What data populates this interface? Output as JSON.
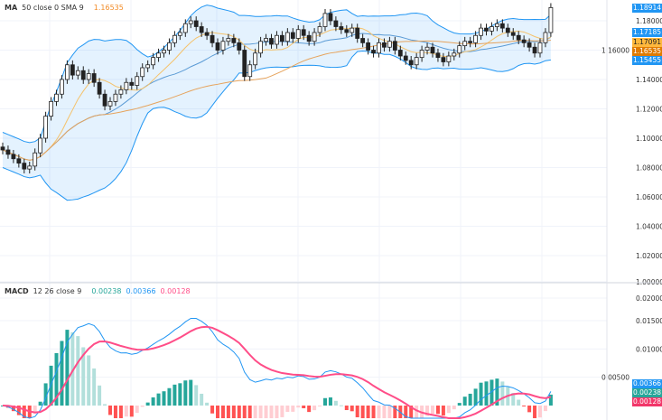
{
  "price_legend": {
    "name": "MA",
    "params": "50 close 0 SMA 9",
    "value": "1.16535",
    "value_color": "#f28c28"
  },
  "macd_legend": {
    "name": "MACD",
    "params": "12 26 close 9",
    "values": [
      {
        "text": "0.00238",
        "color": "#26a69a"
      },
      {
        "text": "0.00366",
        "color": "#2196f3"
      },
      {
        "text": "0.00128",
        "color": "#ff4d88"
      }
    ]
  },
  "price_tags": [
    {
      "text": "1.18914",
      "color": "#2196f3",
      "price": 1.18914
    },
    {
      "text": "1.17185",
      "color": "#2196f3",
      "price": 1.17185
    },
    {
      "text": "1.17091",
      "color": "#ffb83d",
      "price": 1.17091,
      "dark_text": true
    },
    {
      "text": "1.16535",
      "color": "#e07b00",
      "price": 1.16535
    },
    {
      "text": "1.15455",
      "color": "#2196f3",
      "price": 1.15455
    }
  ],
  "macd_tags": [
    {
      "text": "0.00366",
      "color": "#2196f3"
    },
    {
      "text": "0.00238",
      "color": "#26a69a"
    },
    {
      "text": "0.00128",
      "color": "#f23669"
    }
  ],
  "chart_data": [
    {
      "type": "candlestick",
      "ylim": [
        1.0,
        1.19
      ],
      "y_ticks": [
        "1.18000",
        "1.16000",
        "1.14000",
        "1.12000",
        "1.10000",
        "1.08000",
        "1.06000",
        "1.04000",
        "1.02000",
        "1.00000"
      ],
      "grid": true,
      "overlays": [
        "Bollinger Bands",
        "MA 50",
        "SMA 9"
      ],
      "closes": [
        1.092,
        1.089,
        1.086,
        1.083,
        1.079,
        1.081,
        1.09,
        1.1,
        1.115,
        1.125,
        1.13,
        1.14,
        1.15,
        1.143,
        1.146,
        1.14,
        1.144,
        1.138,
        1.13,
        1.122,
        1.125,
        1.13,
        1.133,
        1.138,
        1.136,
        1.142,
        1.148,
        1.15,
        1.155,
        1.158,
        1.16,
        1.165,
        1.17,
        1.172,
        1.178,
        1.18,
        1.176,
        1.172,
        1.17,
        1.165,
        1.16,
        1.166,
        1.168,
        1.165,
        1.16,
        1.142,
        1.15,
        1.158,
        1.166,
        1.168,
        1.164,
        1.17,
        1.166,
        1.172,
        1.168,
        1.174,
        1.17,
        1.166,
        1.172,
        1.176,
        1.185,
        1.18,
        1.176,
        1.174,
        1.172,
        1.175,
        1.168,
        1.165,
        1.16,
        1.158,
        1.165,
        1.162,
        1.166,
        1.16,
        1.156,
        1.153,
        1.15,
        1.155,
        1.16,
        1.162,
        1.158,
        1.155,
        1.152,
        1.156,
        1.158,
        1.163,
        1.166,
        1.165,
        1.17,
        1.175,
        1.173,
        1.176,
        1.178,
        1.175,
        1.172,
        1.17,
        1.167,
        1.165,
        1.162,
        1.158,
        1.165,
        1.172,
        1.189
      ]
    },
    {
      "type": "macd",
      "ylim": [
        -0.001,
        0.021
      ],
      "y_ticks": [
        "0.02000",
        "0.01500",
        "0.01000",
        "0.00500"
      ],
      "params": [
        12,
        26,
        9
      ]
    }
  ]
}
